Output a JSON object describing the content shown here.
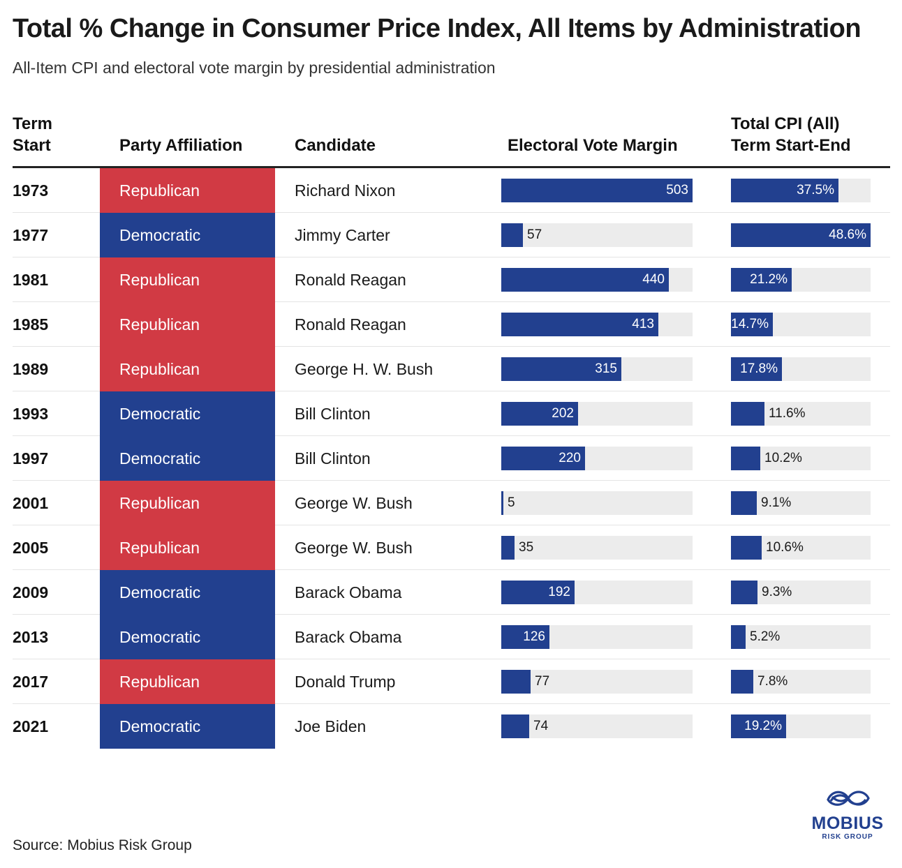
{
  "title": "Total % Change in Consumer Price Index, All Items by Administration",
  "subtitle": "All-Item CPI and electoral vote margin by presidential administration",
  "headers": {
    "term_start_line1": "Term",
    "term_start_line2": "Start",
    "party": "Party Affiliation",
    "candidate": "Candidate",
    "evm": "Electoral Vote Margin",
    "cpi_line1": "Total CPI (All)",
    "cpi_line2": "Term Start-End"
  },
  "colors": {
    "Republican": "#d13a44",
    "Democratic": "#22408f",
    "bar": "#22408f",
    "track": "#ececec"
  },
  "chart_data": {
    "type": "table",
    "columns": [
      "Term Start",
      "Party Affiliation",
      "Candidate",
      "Electoral Vote Margin",
      "Total CPI (All) Term Start-End"
    ],
    "evm_max": 503,
    "cpi_max": 48.6,
    "rows": [
      {
        "year": "1973",
        "party": "Republican",
        "candidate": "Richard Nixon",
        "evm": 503,
        "evm_label": "503",
        "cpi": 37.5,
        "cpi_label": "37.5%"
      },
      {
        "year": "1977",
        "party": "Democratic",
        "candidate": "Jimmy Carter",
        "evm": 57,
        "evm_label": "57",
        "cpi": 48.6,
        "cpi_label": "48.6%"
      },
      {
        "year": "1981",
        "party": "Republican",
        "candidate": "Ronald Reagan",
        "evm": 440,
        "evm_label": "440",
        "cpi": 21.2,
        "cpi_label": "21.2%"
      },
      {
        "year": "1985",
        "party": "Republican",
        "candidate": "Ronald Reagan",
        "evm": 413,
        "evm_label": "413",
        "cpi": 14.7,
        "cpi_label": "14.7%"
      },
      {
        "year": "1989",
        "party": "Republican",
        "candidate": "George H. W. Bush",
        "evm": 315,
        "evm_label": "315",
        "cpi": 17.8,
        "cpi_label": "17.8%"
      },
      {
        "year": "1993",
        "party": "Democratic",
        "candidate": "Bill Clinton",
        "evm": 202,
        "evm_label": "202",
        "cpi": 11.6,
        "cpi_label": "11.6%"
      },
      {
        "year": "1997",
        "party": "Democratic",
        "candidate": "Bill Clinton",
        "evm": 220,
        "evm_label": "220",
        "cpi": 10.2,
        "cpi_label": "10.2%"
      },
      {
        "year": "2001",
        "party": "Republican",
        "candidate": "George W. Bush",
        "evm": 5,
        "evm_label": "5",
        "cpi": 9.1,
        "cpi_label": "9.1%"
      },
      {
        "year": "2005",
        "party": "Republican",
        "candidate": "George W. Bush",
        "evm": 35,
        "evm_label": "35",
        "cpi": 10.6,
        "cpi_label": "10.6%"
      },
      {
        "year": "2009",
        "party": "Democratic",
        "candidate": "Barack Obama",
        "evm": 192,
        "evm_label": "192",
        "cpi": 9.3,
        "cpi_label": "9.3%"
      },
      {
        "year": "2013",
        "party": "Democratic",
        "candidate": "Barack Obama",
        "evm": 126,
        "evm_label": "126",
        "cpi": 5.2,
        "cpi_label": "5.2%"
      },
      {
        "year": "2017",
        "party": "Republican",
        "candidate": "Donald Trump",
        "evm": 77,
        "evm_label": "77",
        "cpi": 7.8,
        "cpi_label": "7.8%"
      },
      {
        "year": "2021",
        "party": "Democratic",
        "candidate": "Joe Biden",
        "evm": 74,
        "evm_label": "74",
        "cpi": 19.2,
        "cpi_label": "19.2%"
      }
    ]
  },
  "source": "Source: Mobius Risk Group",
  "logo": {
    "name": "MOBIUS",
    "sub": "RISK GROUP",
    "icon": "mobius-infinity-icon"
  }
}
